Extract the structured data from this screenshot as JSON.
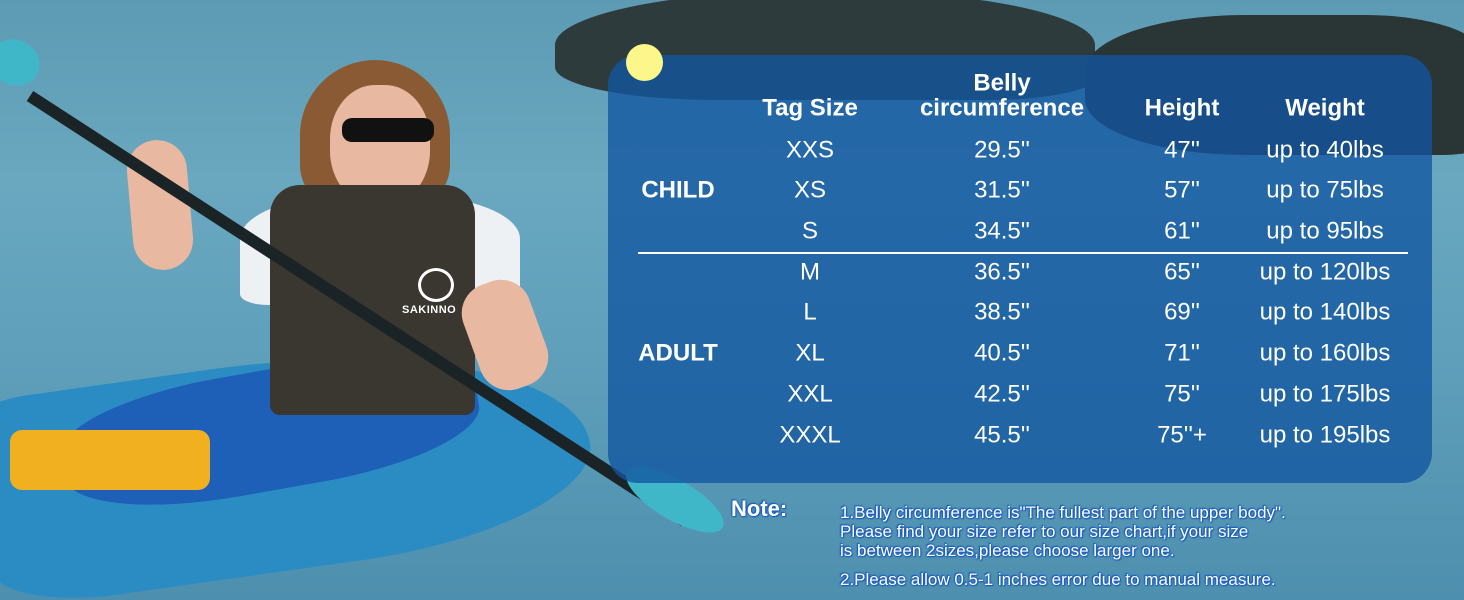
{
  "brand_logo_text": "SAKINNO",
  "table": {
    "headers": {
      "tag_size": "Tag Size",
      "belly_line1": "Belly",
      "belly_line2": "circumference",
      "height": "Height",
      "weight": "Weight"
    },
    "groups": {
      "child": "CHILD",
      "adult": "ADULT"
    },
    "rows": [
      {
        "size": "XXS",
        "belly": "29.5''",
        "height": "47''",
        "weight": "up to 40lbs"
      },
      {
        "size": "XS",
        "belly": "31.5''",
        "height": "57''",
        "weight": "up to 75lbs"
      },
      {
        "size": "S",
        "belly": "34.5''",
        "height": "61''",
        "weight": "up to 95lbs"
      },
      {
        "size": "M",
        "belly": "36.5''",
        "height": "65''",
        "weight": "up to 120lbs"
      },
      {
        "size": "L",
        "belly": "38.5''",
        "height": "69''",
        "weight": "up to 140lbs"
      },
      {
        "size": "XL",
        "belly": "40.5''",
        "height": "71''",
        "weight": "up to 160lbs"
      },
      {
        "size": "XXL",
        "belly": "42.5''",
        "height": "75''",
        "weight": "up to 175lbs"
      },
      {
        "size": "XXXL",
        "belly": "45.5''",
        "height": "75''+",
        "weight": "up to 195lbs"
      }
    ]
  },
  "note": {
    "label": "Note:",
    "line1": "1.Belly circumference is\"The fullest part of the upper body\".",
    "line2": "Please find your size refer to our size chart,if your size",
    "line3": "is between 2sizes,please choose larger one.",
    "line4": "2.Please allow 0.5-1 inches error due to manual measure."
  },
  "colors": {
    "panel": "#12569f",
    "accent_dot": "#fdf68a",
    "note_outline": "#1a5cc0"
  }
}
